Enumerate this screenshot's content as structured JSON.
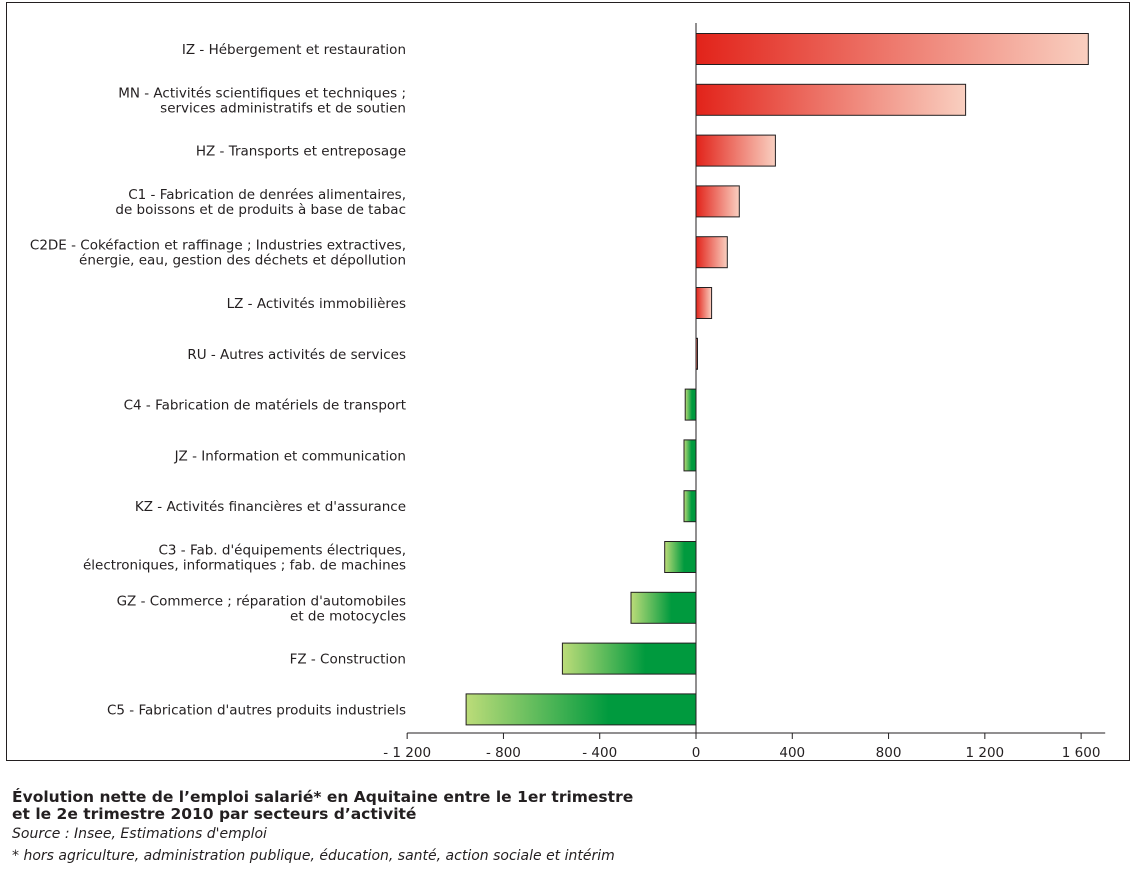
{
  "chart_data": {
    "type": "bar",
    "orientation": "horizontal",
    "title": [
      "Évolution nette de l’emploi salarié* en Aquitaine entre le 1er trimestre",
      "et le 2e trimestre 2010 par secteurs d’activité"
    ],
    "categories": [
      [
        "IZ - Hébergement et restauration"
      ],
      [
        "MN - Activités scientifiques et techniques ;",
        "services administratifs et de soutien"
      ],
      [
        "HZ - Transports et entreposage"
      ],
      [
        "C1 - Fabrication de denrées alimentaires,",
        "de boissons et de produits à base de tabac"
      ],
      [
        "C2DE - Cokéfaction et raffinage ; Industries extractives,",
        "énergie, eau, gestion des déchets et dépollution"
      ],
      [
        "LZ - Activités immobilières"
      ],
      [
        "RU - Autres activités de services"
      ],
      [
        "C4 - Fabrication de matériels de transport"
      ],
      [
        "JZ - Information et communication"
      ],
      [
        "KZ - Activités financières et d'assurance"
      ],
      [
        "C3 - Fab. d'équipements électriques,",
        "électroniques, informatiques ; fab. de machines"
      ],
      [
        "GZ - Commerce ; réparation d'automobiles",
        "et de motocycles"
      ],
      [
        "FZ - Construction"
      ],
      [
        "C5 - Fabrication d'autres produits industriels"
      ]
    ],
    "values": [
      1630,
      1120,
      330,
      180,
      130,
      65,
      5,
      -45,
      -50,
      -50,
      -130,
      -270,
      -555,
      -955
    ],
    "xlim": [
      -1200,
      1700
    ],
    "xticks": [
      -1200,
      -800,
      -400,
      0,
      400,
      800,
      1200,
      1600
    ],
    "xtick_labels": [
      "- 1 200",
      "- 800",
      "- 400",
      "0",
      "400",
      "800",
      "1 200",
      "1 600"
    ],
    "grid": false,
    "colors": {
      "positive_dark": "#e2231a",
      "positive_light": "#f9cfc0",
      "negative_dark": "#009a3e",
      "negative_light": "#bcdc79",
      "outline": "#231f20"
    }
  },
  "source": "Source : Insee, Estimations d'emploi",
  "note": "* hors agriculture, administration publique, éducation, santé, action sociale et intérim"
}
